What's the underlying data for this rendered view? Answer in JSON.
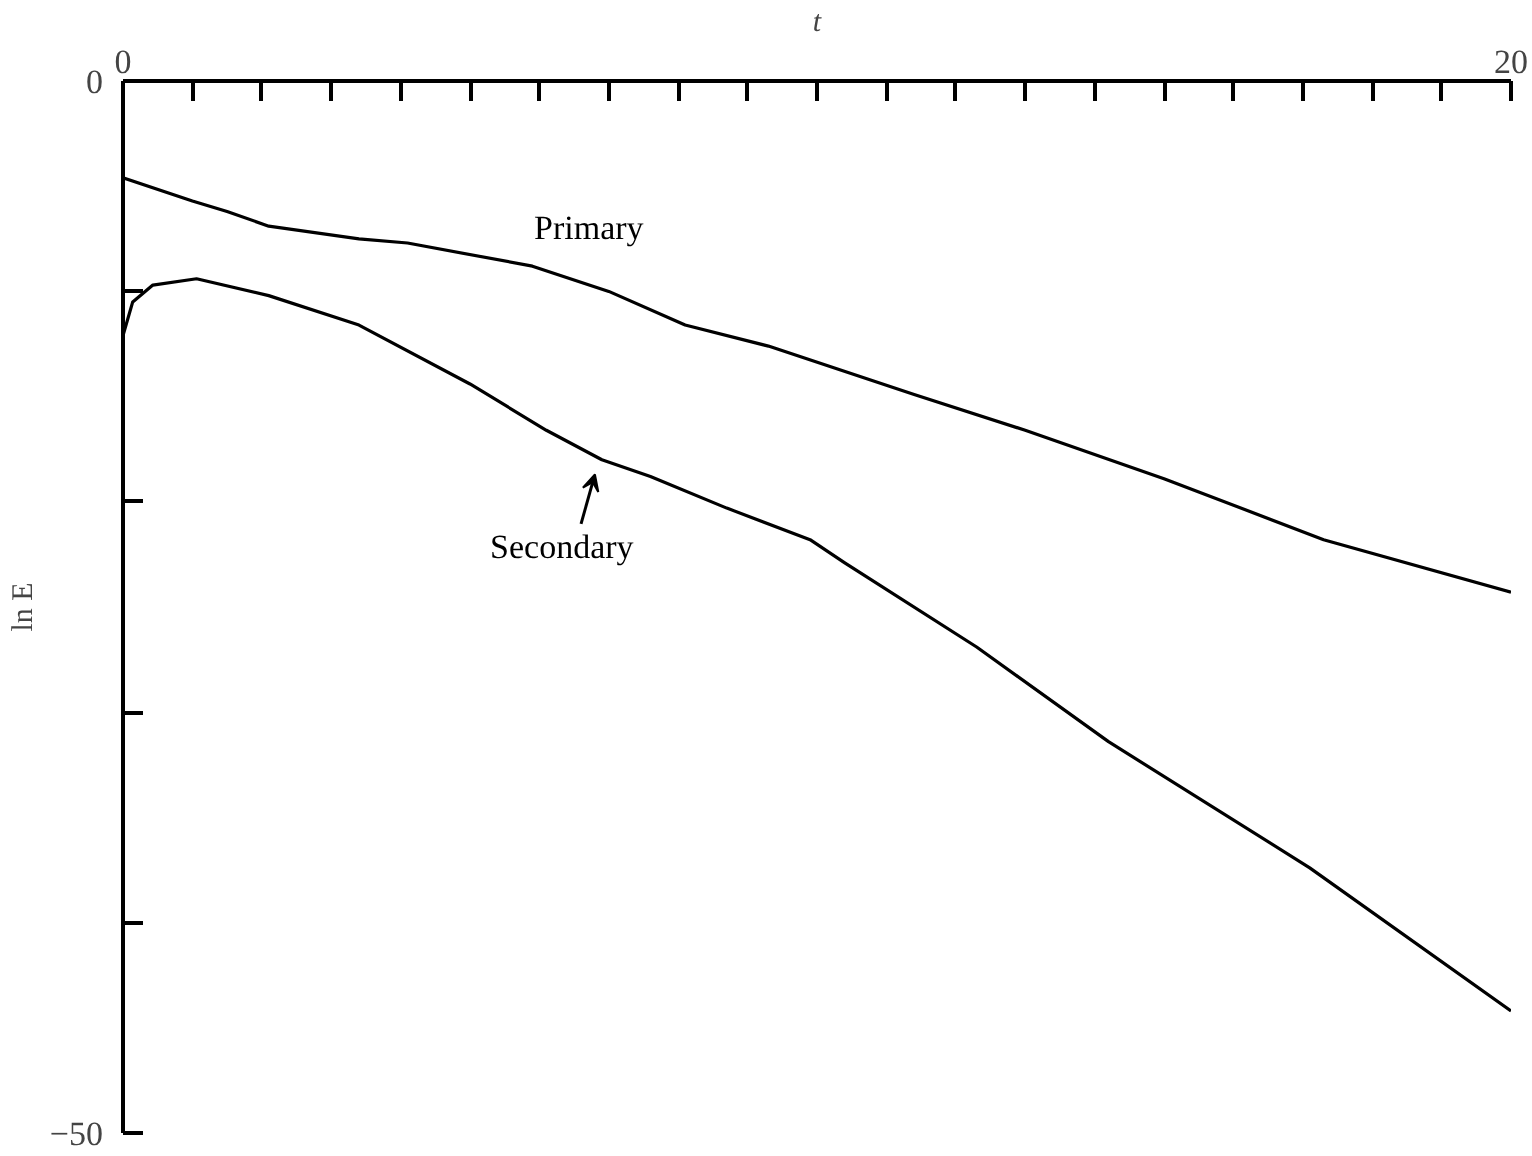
{
  "chart_data": {
    "type": "line",
    "xlabel": "t",
    "ylabel": "ln E",
    "xlim": [
      0,
      20
    ],
    "ylim": [
      -50,
      0
    ],
    "xticks": [
      {
        "value": 0,
        "label": "0"
      },
      {
        "value": 1,
        "label": null
      },
      {
        "value": 2,
        "label": null
      },
      {
        "value": 3,
        "label": null
      },
      {
        "value": 4,
        "label": null
      },
      {
        "value": 5,
        "label": null
      },
      {
        "value": 6,
        "label": null
      },
      {
        "value": 7,
        "label": null
      },
      {
        "value": 8,
        "label": null
      },
      {
        "value": 9,
        "label": null
      },
      {
        "value": 10,
        "label": null
      },
      {
        "value": 11,
        "label": null
      },
      {
        "value": 12,
        "label": null
      },
      {
        "value": 13,
        "label": null
      },
      {
        "value": 14,
        "label": null
      },
      {
        "value": 15,
        "label": null
      },
      {
        "value": 16,
        "label": null
      },
      {
        "value": 17,
        "label": null
      },
      {
        "value": 18,
        "label": null
      },
      {
        "value": 19,
        "label": null
      },
      {
        "value": 20,
        "label": "20"
      }
    ],
    "yticks": [
      {
        "value": 0,
        "label": "0"
      },
      {
        "value": -10,
        "label": null
      },
      {
        "value": -20,
        "label": null
      },
      {
        "value": -30,
        "label": null
      },
      {
        "value": -40,
        "label": null
      },
      {
        "value": -50,
        "label": "−50"
      }
    ],
    "grid": false,
    "marker": "none",
    "line_style": "solid",
    "series": [
      {
        "name": "Primary",
        "color": "#000000",
        "x": [
          0,
          1,
          1.5,
          2.1,
          3.4,
          4.1,
          5.9,
          7,
          8.1,
          9.3,
          11.4,
          13,
          15,
          17.3,
          20
        ],
        "values": [
          -4.6,
          -5.7,
          -6.2,
          -6.9,
          -7.5,
          -7.7,
          -8.8,
          -10,
          -11.6,
          -12.6,
          -14.9,
          -16.6,
          -18.9,
          -21.8,
          -24.3
        ]
      },
      {
        "name": "Secondary",
        "color": "#000000",
        "x": [
          0,
          0.14,
          0.43,
          1.06,
          2.1,
          3.4,
          5,
          6.1,
          6.9,
          7.6,
          8.7,
          9.9,
          10.4,
          12.3,
          14.2,
          17.1,
          20
        ],
        "values": [
          -12.1,
          -10.5,
          -9.7,
          -9.4,
          -10.2,
          -11.6,
          -14.4,
          -16.6,
          -18,
          -18.8,
          -20.3,
          -21.8,
          -22.9,
          -26.9,
          -31.4,
          -37.4,
          -44.2
        ]
      }
    ]
  }
}
